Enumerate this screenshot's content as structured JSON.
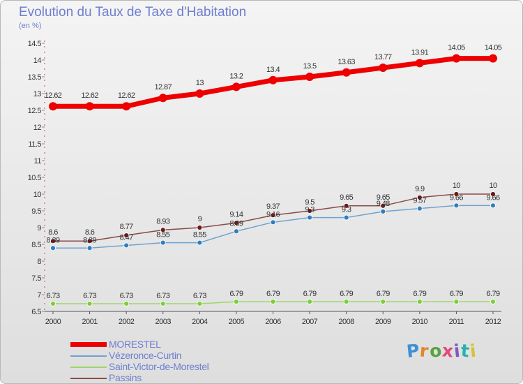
{
  "title": "Evolution du Taux de Taxe d'Habitation",
  "unit_label": "(en %)",
  "logo_text": "Proxiti",
  "logo_colors": [
    "#3d8fd6",
    "#e0872a",
    "#5aa33c",
    "#e04b7a",
    "#7a5cc0",
    "#2bb0b0",
    "#d6c23a"
  ],
  "chart_data": {
    "type": "line",
    "title": "Evolution du Taux de Taxe d'Habitation",
    "ylabel": "(en %)",
    "xlabel": "",
    "x": [
      "2000",
      "2001",
      "2002",
      "2003",
      "2004",
      "2005",
      "2006",
      "2007",
      "2008",
      "2009",
      "2010",
      "2011",
      "2012"
    ],
    "ylim": [
      6.5,
      14.5
    ],
    "yticks": [
      "6.5",
      "7",
      "7.5",
      "8",
      "8.5",
      "9",
      "9.5",
      "10",
      "10.5",
      "11",
      "11.5",
      "12",
      "12.5",
      "13",
      "13.5",
      "14",
      "14.5"
    ],
    "grid": false,
    "legend_position": "bottom-left",
    "series": [
      {
        "name": "MORESTEL",
        "color": "#ee0000",
        "marker_color": "#ee0000",
        "values": [
          12.62,
          12.62,
          12.62,
          12.87,
          13,
          13.2,
          13.4,
          13.5,
          13.63,
          13.77,
          13.91,
          14.05,
          14.05
        ],
        "labels": [
          "12.62",
          "12.62",
          "12.62",
          "12.87",
          "13",
          "13.2",
          "13.4",
          "13.5",
          "13.63",
          "13.77",
          "13.91",
          "14.05",
          "14.05"
        ]
      },
      {
        "name": "Vézeronce-Curtin",
        "color": "#6fa3cf",
        "marker_color": "#2f7fc0",
        "values": [
          8.39,
          8.39,
          8.47,
          8.55,
          8.55,
          8.89,
          9.16,
          9.3,
          9.3,
          9.48,
          9.57,
          9.66,
          9.66
        ],
        "labels": [
          "8.39",
          "8.39",
          "8.47",
          "8.55",
          "8.55",
          "8.89",
          "9.16",
          "9.3",
          "9.3",
          "9.48",
          "9.57",
          "9.66",
          "9.66"
        ]
      },
      {
        "name": "Saint-Victor-de-Morestel",
        "color": "#9ed66a",
        "marker_color": "#7bcf3a",
        "values": [
          6.73,
          6.73,
          6.73,
          6.73,
          6.73,
          6.79,
          6.79,
          6.79,
          6.79,
          6.79,
          6.79,
          6.79,
          6.79
        ],
        "labels": [
          "6.73",
          "6.73",
          "6.73",
          "6.73",
          "6.73",
          "6.79",
          "6.79",
          "6.79",
          "6.79",
          "6.79",
          "6.79",
          "6.79",
          "6.79"
        ]
      },
      {
        "name": "Passins",
        "color": "#8a4a4a",
        "marker_color": "#6e1a1a",
        "values": [
          8.6,
          8.6,
          8.77,
          8.93,
          9,
          9.14,
          9.37,
          9.5,
          9.65,
          9.65,
          9.9,
          10,
          10
        ],
        "labels": [
          "8.6",
          "8.6",
          "8.77",
          "8.93",
          "9",
          "9.14",
          "9.37",
          "9.5",
          "9.65",
          "9.65",
          "9.9",
          "10",
          "10"
        ]
      }
    ]
  }
}
